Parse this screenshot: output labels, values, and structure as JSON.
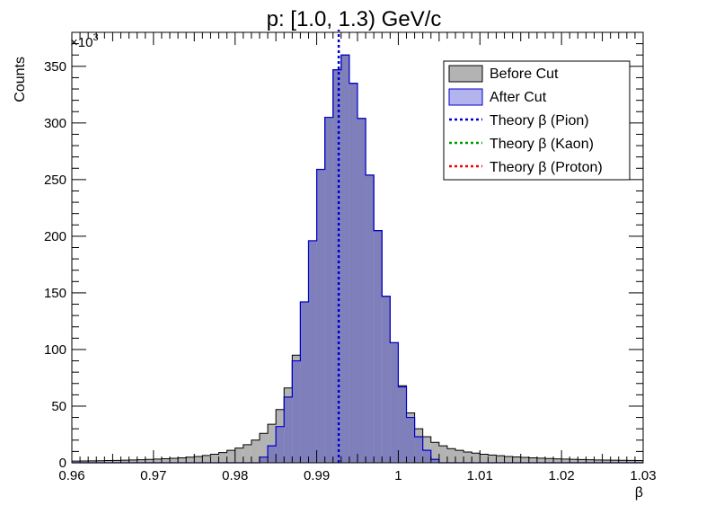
{
  "chart_data": {
    "type": "histogram",
    "title": "p: [1.0, 1.3) GeV/c",
    "xlabel": "β",
    "ylabel": "Counts",
    "y_multiplier_label": "×10",
    "y_multiplier_exponent": "3",
    "xlim": [
      0.96,
      1.03
    ],
    "ylim": [
      0,
      380
    ],
    "x_ticks": [
      "0.96",
      "0.97",
      "0.98",
      "0.99",
      "1",
      "1.01",
      "1.02",
      "1.03"
    ],
    "y_ticks": [
      "0",
      "50",
      "100",
      "150",
      "200",
      "250",
      "300",
      "350"
    ],
    "bin_edges": [
      0.96,
      0.961,
      0.962,
      0.963,
      0.964,
      0.965,
      0.966,
      0.967,
      0.968,
      0.969,
      0.97,
      0.971,
      0.972,
      0.973,
      0.974,
      0.975,
      0.976,
      0.977,
      0.978,
      0.979,
      0.98,
      0.981,
      0.982,
      0.983,
      0.984,
      0.985,
      0.986,
      0.987,
      0.988,
      0.989,
      0.99,
      0.991,
      0.992,
      0.993,
      0.994,
      0.995,
      0.996,
      0.997,
      0.998,
      0.999,
      1.0,
      1.001,
      1.002,
      1.003,
      1.004,
      1.005,
      1.006,
      1.007,
      1.008,
      1.009,
      1.01,
      1.011,
      1.012,
      1.013,
      1.014,
      1.015,
      1.016,
      1.017,
      1.018,
      1.019,
      1.02,
      1.021,
      1.022,
      1.023,
      1.024,
      1.025,
      1.026,
      1.027,
      1.028,
      1.029,
      1.03
    ],
    "series": [
      {
        "name": "Before Cut",
        "color": "#b3b3b3",
        "line_color": "#000000",
        "values": [
          1.5,
          1.6,
          1.7,
          1.8,
          2.0,
          2.1,
          2.3,
          2.5,
          2.7,
          3.0,
          3.3,
          3.6,
          4.0,
          4.4,
          5.0,
          5.6,
          6.4,
          7.5,
          9,
          11,
          13,
          16,
          20,
          26,
          34,
          47,
          66,
          95,
          142,
          196,
          259,
          305,
          347,
          360,
          335,
          304,
          254,
          205,
          147,
          106,
          68,
          44,
          30,
          23,
          18,
          15,
          12.5,
          11,
          9.5,
          8.5,
          7.5,
          6.8,
          6.2,
          5.6,
          5.2,
          4.8,
          4.4,
          4.1,
          3.8,
          3.5,
          3.3,
          3.1,
          2.9,
          2.7,
          2.5,
          2.4,
          2.3,
          2.2,
          2.1,
          2.0
        ]
      },
      {
        "name": "After Cut",
        "color": "#b3b3ee",
        "line_color": "#0000cc",
        "values": [
          0,
          0,
          0,
          0,
          0,
          0,
          0,
          0,
          0,
          0,
          0,
          0,
          0,
          0,
          0,
          0,
          0,
          0,
          0,
          0,
          0,
          0,
          0,
          5,
          15,
          32,
          58,
          90,
          142,
          196,
          259,
          305,
          347,
          360,
          335,
          304,
          254,
          205,
          147,
          106,
          67,
          40,
          23,
          11,
          3,
          0,
          0,
          0,
          0,
          0,
          0,
          0,
          0,
          0,
          0,
          0,
          0,
          0,
          0,
          0,
          0,
          0,
          0,
          0,
          0,
          0,
          0,
          0,
          0,
          0
        ]
      }
    ],
    "overlap_color": "#7f7fbc",
    "theory_lines": [
      {
        "name": "Theory  β (Pion)",
        "x": 0.9927,
        "color": "#0000cc"
      },
      {
        "name": "Theory  β (Kaon)",
        "color": "#009900"
      },
      {
        "name": "Theory  β (Proton)",
        "color": "#ee0000"
      }
    ],
    "legend": {
      "placement": "top-right",
      "entries": [
        {
          "label": "Before Cut",
          "kind": "box",
          "color": "#b3b3b3"
        },
        {
          "label": "After Cut",
          "kind": "box",
          "color": "#b3b3ee"
        },
        {
          "label": "Theory  β (Pion)",
          "kind": "dotted",
          "color": "#0000cc"
        },
        {
          "label": "Theory  β (Kaon)",
          "kind": "dotted",
          "color": "#009900"
        },
        {
          "label": "Theory  β (Proton)",
          "kind": "dotted",
          "color": "#ee0000"
        }
      ]
    },
    "grid": false
  }
}
